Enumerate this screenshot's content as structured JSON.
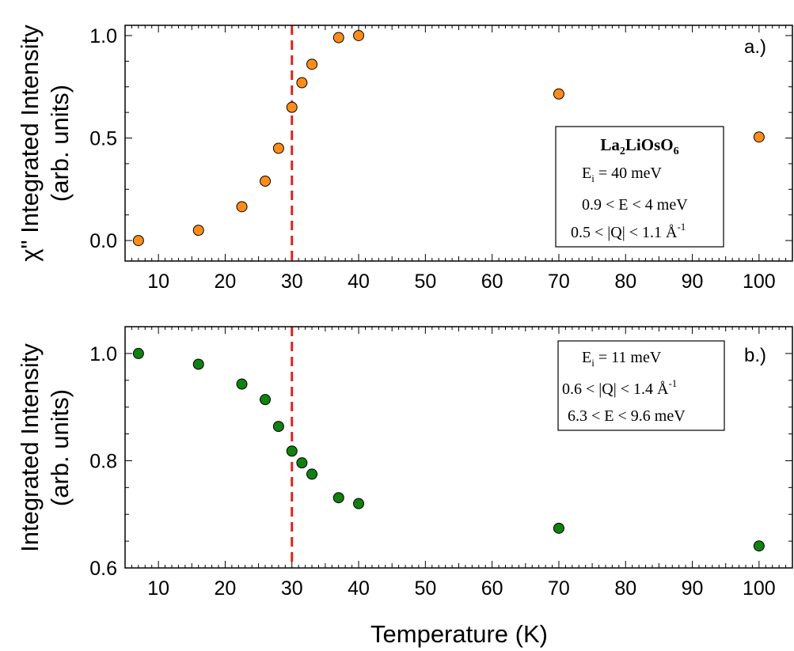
{
  "chart_data": [
    {
      "type": "scatter",
      "panel_label": "a.)",
      "ylabel_line1": "χ\" Integrated Intensity",
      "ylabel_line2": "(arb. units)",
      "xlabel": "",
      "xlim": [
        5,
        105
      ],
      "ylim": [
        -0.1,
        1.05
      ],
      "xticks": [
        10,
        20,
        30,
        40,
        50,
        60,
        70,
        80,
        90,
        100
      ],
      "yticks": [
        0.0,
        0.5,
        1.0
      ],
      "ytick_labels": [
        "0.0",
        "0.5",
        "1.0"
      ],
      "marker_color": "#ff8c1a",
      "reference_line": {
        "x": 30,
        "color": "#e0201b"
      },
      "series": [
        {
          "name": "La2LiOsO6 Ei=40 meV",
          "x": [
            7,
            16,
            22.5,
            26,
            28,
            30,
            31.5,
            33,
            37,
            40,
            70,
            100
          ],
          "y": [
            0.0,
            0.05,
            0.165,
            0.29,
            0.45,
            0.65,
            0.77,
            0.86,
            0.99,
            1.0,
            0.715,
            0.505
          ]
        }
      ],
      "legend_box": {
        "compound_parts": [
          "La",
          "2",
          "LiOsO",
          "6"
        ],
        "ei_parts": [
          "E",
          "i",
          " = 40 meV"
        ],
        "energy_range": "0.9 < E < 4 meV",
        "q_range_parts": [
          "0.5 < |Q| < 1.1 Å",
          "-1"
        ]
      }
    },
    {
      "type": "scatter",
      "panel_label": "b.)",
      "ylabel_line1": "Integrated Intensity",
      "ylabel_line2": "(arb. units)",
      "xlabel": "Temperature (K)",
      "xlim": [
        5,
        105
      ],
      "ylim": [
        0.6,
        1.05
      ],
      "xticks": [
        10,
        20,
        30,
        40,
        50,
        60,
        70,
        80,
        90,
        100
      ],
      "yticks": [
        0.6,
        0.8,
        1.0
      ],
      "ytick_labels": [
        "0.6",
        "0.8",
        "1.0"
      ],
      "marker_color": "#118011",
      "reference_line": {
        "x": 30,
        "color": "#e0201b"
      },
      "series": [
        {
          "name": "Ei=11 meV",
          "x": [
            7,
            16,
            22.5,
            26,
            28,
            30,
            31.5,
            33,
            37,
            40,
            70,
            100
          ],
          "y": [
            1.0,
            0.98,
            0.943,
            0.914,
            0.864,
            0.818,
            0.796,
            0.775,
            0.731,
            0.72,
            0.674,
            0.641
          ]
        }
      ],
      "legend_box": {
        "ei_parts": [
          "E",
          "i",
          " = 11 meV"
        ],
        "q_range_parts": [
          "0.6 < |Q| < 1.4 Å",
          "-1"
        ],
        "energy_range": "6.3 < E < 9.6 meV"
      }
    }
  ]
}
